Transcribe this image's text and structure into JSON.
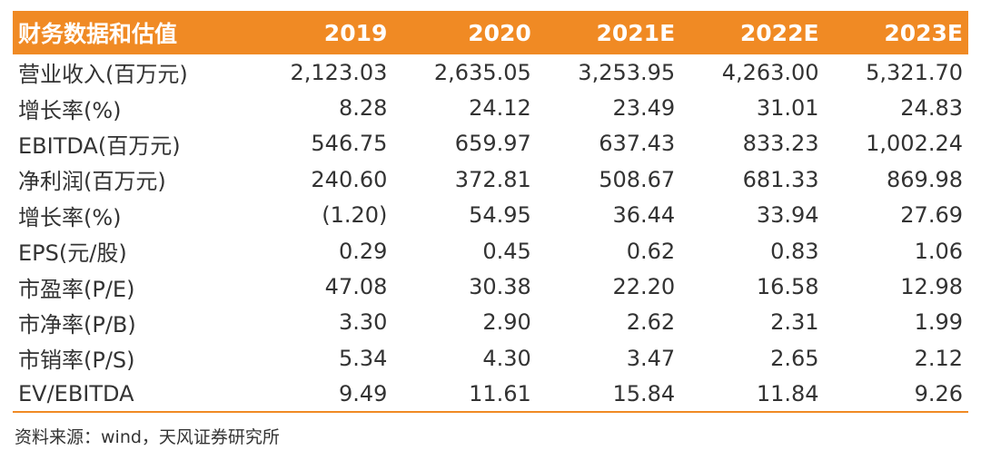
{
  "table": {
    "header": {
      "title": "财务数据和估值",
      "years": [
        "2019",
        "2020",
        "2021E",
        "2022E",
        "2023E"
      ]
    },
    "rows": [
      {
        "label": "营业收入(百万元)",
        "values": [
          "2,123.03",
          "2,635.05",
          "3,253.95",
          "4,263.00",
          "5,321.70"
        ]
      },
      {
        "label": "增长率(%)",
        "values": [
          "8.28",
          "24.12",
          "23.49",
          "31.01",
          "24.83"
        ]
      },
      {
        "label": "EBITDA(百万元)",
        "values": [
          "546.75",
          "659.97",
          "637.43",
          "833.23",
          "1,002.24"
        ]
      },
      {
        "label": "净利润(百万元)",
        "values": [
          "240.60",
          "372.81",
          "508.67",
          "681.33",
          "869.98"
        ]
      },
      {
        "label": "增长率(%)",
        "values": [
          "(1.20)",
          "54.95",
          "36.44",
          "33.94",
          "27.69"
        ]
      },
      {
        "label": "EPS(元/股)",
        "values": [
          "0.29",
          "0.45",
          "0.62",
          "0.83",
          "1.06"
        ]
      },
      {
        "label": "市盈率(P/E)",
        "values": [
          "47.08",
          "30.38",
          "22.20",
          "16.58",
          "12.98"
        ]
      },
      {
        "label": "市净率(P/B)",
        "values": [
          "3.30",
          "2.90",
          "2.62",
          "2.31",
          "1.99"
        ]
      },
      {
        "label": "市销率(P/S)",
        "values": [
          "5.34",
          "4.30",
          "3.47",
          "2.65",
          "2.12"
        ]
      },
      {
        "label": "EV/EBITDA",
        "values": [
          "9.49",
          "11.61",
          "15.84",
          "11.84",
          "9.26"
        ]
      }
    ]
  },
  "source": "资料来源：wind，天风证券研究所",
  "colors": {
    "header_bg": "#f08a24",
    "header_text": "#ffffff",
    "body_text": "#333333"
  }
}
